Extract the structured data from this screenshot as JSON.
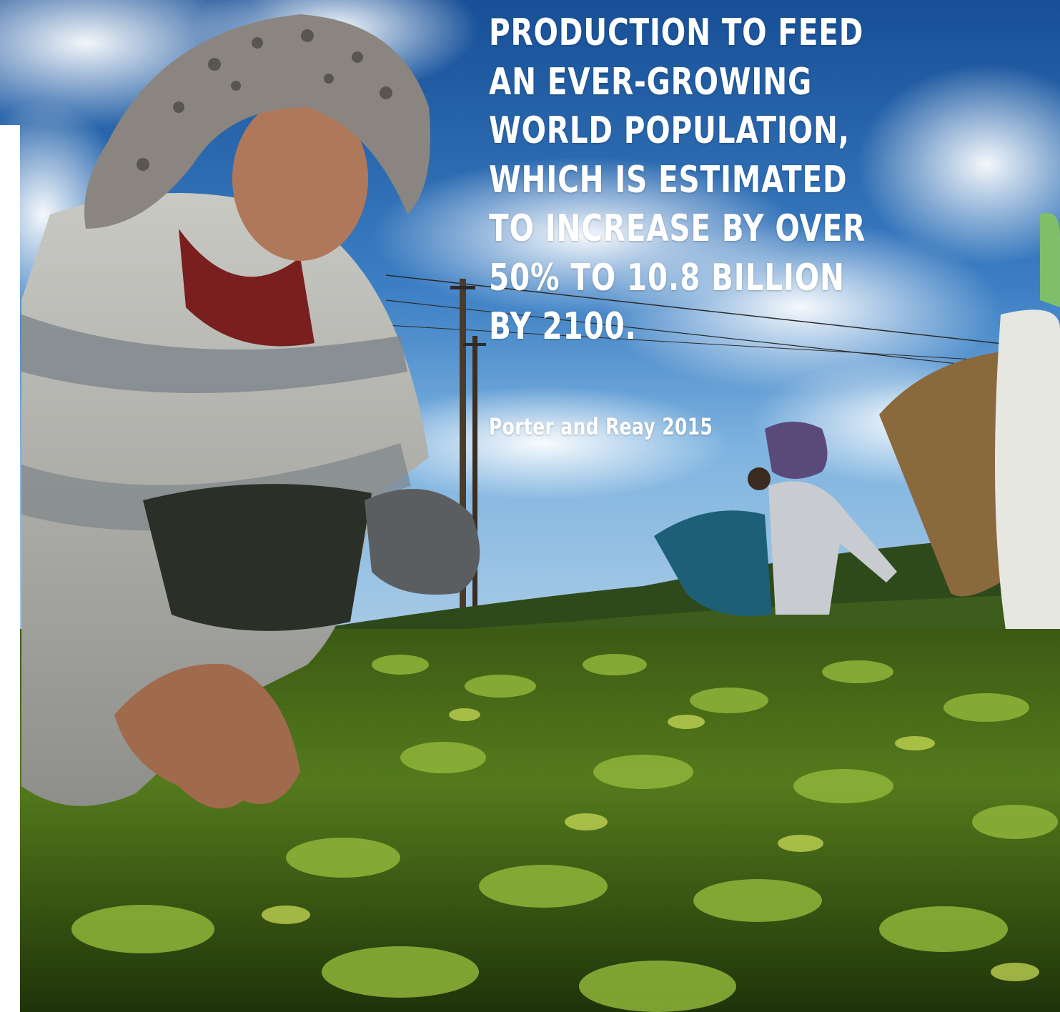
{
  "quote": {
    "lines": [
      "PRODUCTION TO FEED",
      "AN EVER-GROWING",
      "WORLD POPULATION,",
      "WHICH IS ESTIMATED",
      "TO INCREASE BY OVER",
      "50% TO 10.8 BILLION",
      "BY 2100."
    ],
    "citation": "Porter and Reay 2015"
  },
  "colors": {
    "text": "#ffffff",
    "sky_top": "#1f5fa8",
    "sky_low": "#5d9fd8",
    "leaf_green": "#5f8a1e",
    "sweater_grey": "#b9b9b5"
  }
}
